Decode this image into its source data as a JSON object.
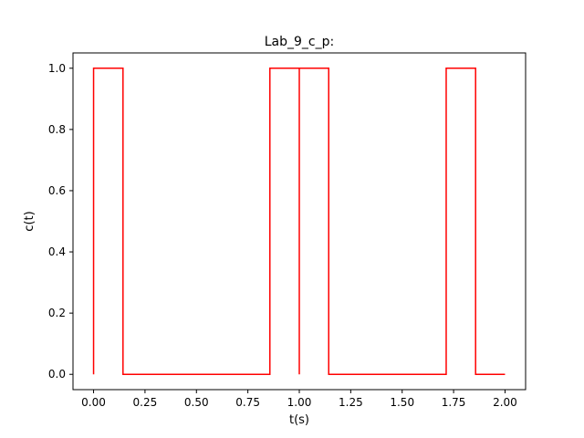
{
  "chart_data": {
    "type": "line",
    "title": "Lab_9_c_p:",
    "xlabel": "t(s)",
    "ylabel": "c(t)",
    "xlim": [
      -0.1,
      2.1
    ],
    "ylim": [
      -0.05,
      1.05
    ],
    "grid": false,
    "legend": "none",
    "x_ticks": [
      "0.00",
      "0.25",
      "0.50",
      "0.75",
      "1.00",
      "1.25",
      "1.50",
      "1.75",
      "2.00"
    ],
    "y_ticks": [
      "0.0",
      "0.2",
      "0.4",
      "0.6",
      "0.8",
      "1.0"
    ],
    "series": [
      {
        "color": "#ff0000",
        "x": [
          0,
          0,
          0.143,
          0.143,
          0.857,
          0.857,
          1.0,
          1.0,
          1.0,
          1.0,
          1.143,
          1.143,
          1.714,
          1.714,
          1.857,
          1.857,
          2.0
        ],
        "y": [
          0,
          1,
          1,
          0,
          0,
          1,
          1,
          0,
          1,
          1,
          1,
          0,
          0,
          1,
          1,
          0,
          0
        ]
      }
    ]
  }
}
